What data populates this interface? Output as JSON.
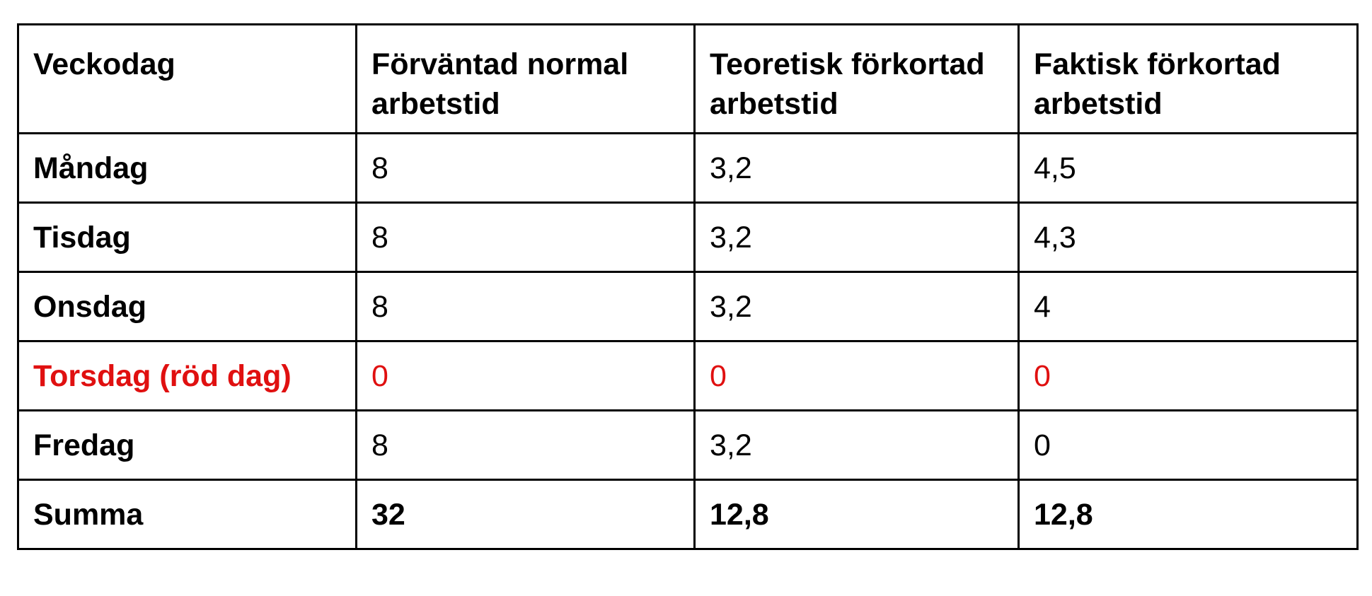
{
  "table": {
    "headers": [
      "Veckodag",
      "Förväntad normal arbetstid",
      "Teoretisk förkortad arbetstid",
      "Faktisk förkortad arbetstid"
    ],
    "rows": [
      {
        "day": "Måndag",
        "normal": "8",
        "theoretical": "3,2",
        "actual": "4,5"
      },
      {
        "day": "Tisdag",
        "normal": "8",
        "theoretical": "3,2",
        "actual": "4,3"
      },
      {
        "day": "Onsdag",
        "normal": "8",
        "theoretical": "3,2",
        "actual": "4"
      },
      {
        "day": "Torsdag (röd dag)",
        "normal": "0",
        "theoretical": "0",
        "actual": "0"
      },
      {
        "day": "Fredag",
        "normal": "8",
        "theoretical": "3,2",
        "actual": "0"
      }
    ],
    "total": {
      "label": "Summa",
      "normal": "32",
      "theoretical": "12,8",
      "actual": "12,8"
    }
  },
  "colors": {
    "holiday_text": "#e01010",
    "text": "#000000",
    "border": "#000000"
  }
}
